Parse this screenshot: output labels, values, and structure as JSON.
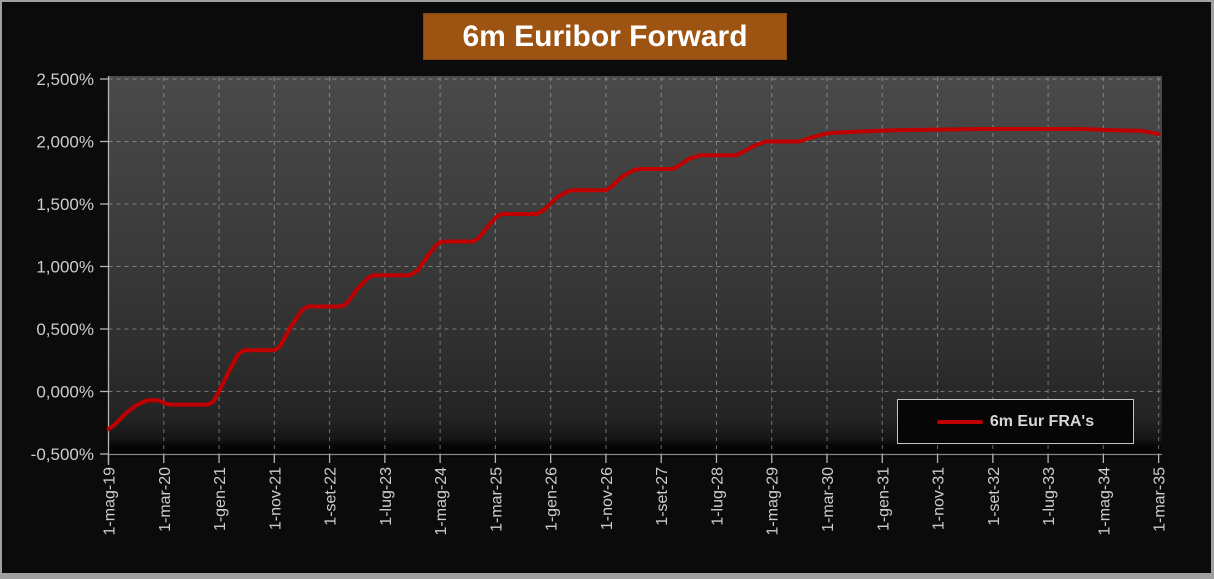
{
  "window": {
    "background": "#0b0b0b",
    "frame_border_color": "#a0a0a0"
  },
  "title": {
    "text": "6m Euribor Forward",
    "bg": "#9d5412",
    "color": "#ffffff"
  },
  "legend": {
    "label": "6m Eur FRA's",
    "border_color": "#c4c4c4",
    "bg": "#060606",
    "text_color": "#d6d6d6"
  },
  "chart_data": {
    "type": "line",
    "title": "6m Euribor Forward",
    "grid": "dashed",
    "grid_color": "#b9b9b9",
    "axis_color": "#b4b4b4",
    "tick_label_color": "#cdcdcd",
    "legend_position": "bottom-right",
    "ylabel": "",
    "xlabel": "",
    "ylim": [
      -0.5,
      2.5
    ],
    "y_ticks": [
      {
        "value": 2.5,
        "label": "2,500%"
      },
      {
        "value": 2.0,
        "label": "2,000%"
      },
      {
        "value": 1.5,
        "label": "1,500%"
      },
      {
        "value": 1.0,
        "label": "1,000%"
      },
      {
        "value": 0.5,
        "label": "0,500%"
      },
      {
        "value": 0.0,
        "label": "0,000%"
      },
      {
        "value": -0.5,
        "label": "-0,500%"
      }
    ],
    "xlim_months": [
      0,
      190
    ],
    "x_tick_months": [
      0,
      10,
      20,
      30,
      40,
      50,
      60,
      70,
      80,
      90,
      100,
      110,
      120,
      130,
      140,
      150,
      160,
      170,
      180,
      190
    ],
    "x_tick_labels": [
      "1-mag-19",
      "1-mar-20",
      "1-gen-21",
      "1-nov-21",
      "1-set-22",
      "1-lug-23",
      "1-mag-24",
      "1-mar-25",
      "1-gen-26",
      "1-nov-26",
      "1-set-27",
      "1-lug-28",
      "1-mag-29",
      "1-mar-30",
      "1-gen-31",
      "1-nov-31",
      "1-set-32",
      "1-lug-33",
      "1-mag-34",
      "1-mar-35"
    ],
    "series": [
      {
        "name": "6m Eur FRA's",
        "color": "#c00000",
        "points_month_pct": [
          [
            0,
            -0.3
          ],
          [
            1,
            -0.27
          ],
          [
            3,
            -0.18
          ],
          [
            5,
            -0.11
          ],
          [
            7,
            -0.07
          ],
          [
            9,
            -0.07
          ],
          [
            10,
            -0.09
          ],
          [
            11,
            -0.105
          ],
          [
            18,
            -0.105
          ],
          [
            19,
            -0.08
          ],
          [
            20,
            0.0
          ],
          [
            22,
            0.18
          ],
          [
            23.5,
            0.3
          ],
          [
            24.5,
            0.33
          ],
          [
            30,
            0.33
          ],
          [
            31,
            0.36
          ],
          [
            33,
            0.52
          ],
          [
            35,
            0.65
          ],
          [
            36,
            0.68
          ],
          [
            42,
            0.68
          ],
          [
            43,
            0.7
          ],
          [
            45,
            0.82
          ],
          [
            47,
            0.91
          ],
          [
            48,
            0.93
          ],
          [
            54.5,
            0.93
          ],
          [
            56,
            0.97
          ],
          [
            58,
            1.1
          ],
          [
            59.5,
            1.18
          ],
          [
            60.5,
            1.2
          ],
          [
            66,
            1.2
          ],
          [
            67,
            1.23
          ],
          [
            69,
            1.34
          ],
          [
            70.5,
            1.41
          ],
          [
            71.5,
            1.42
          ],
          [
            77.5,
            1.42
          ],
          [
            79,
            1.46
          ],
          [
            81,
            1.55
          ],
          [
            83,
            1.6
          ],
          [
            84,
            1.61
          ],
          [
            90,
            1.61
          ],
          [
            91,
            1.64
          ],
          [
            93,
            1.72
          ],
          [
            95,
            1.77
          ],
          [
            96,
            1.78
          ],
          [
            102,
            1.78
          ],
          [
            103,
            1.8
          ],
          [
            105,
            1.86
          ],
          [
            107,
            1.89
          ],
          [
            113.5,
            1.89
          ],
          [
            115,
            1.92
          ],
          [
            117,
            1.97
          ],
          [
            119,
            2.0
          ],
          [
            125,
            2.0
          ],
          [
            127,
            2.03
          ],
          [
            129.5,
            2.06
          ],
          [
            131,
            2.07
          ],
          [
            136,
            2.08
          ],
          [
            142,
            2.09
          ],
          [
            150,
            2.095
          ],
          [
            158,
            2.1
          ],
          [
            168,
            2.1
          ],
          [
            176,
            2.1
          ],
          [
            182,
            2.09
          ],
          [
            187,
            2.085
          ],
          [
            190,
            2.06
          ]
        ]
      }
    ]
  }
}
